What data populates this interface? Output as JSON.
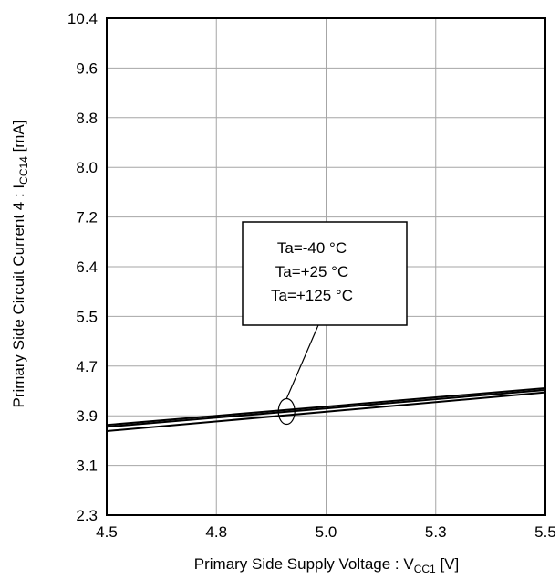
{
  "chart_data": {
    "type": "line",
    "xlabel": {
      "main": "Primary Side Supply Voltage : V",
      "sub": "CC1",
      "suffix": " [V]"
    },
    "ylabel": {
      "main": "Primary Side Circuit Current 4 : I",
      "sub": "CC14",
      "suffix": " [mA]"
    },
    "xlim": [
      4.5,
      5.5
    ],
    "ylim": [
      2.3,
      10.4
    ],
    "x_ticks": [
      "4.5",
      "4.8",
      "5.0",
      "5.3",
      "5.5"
    ],
    "y_ticks": [
      "10.4",
      "9.6",
      "8.8",
      "8.0",
      "7.2",
      "6.4",
      "5.5",
      "4.7",
      "3.9",
      "3.1",
      "2.3"
    ],
    "grid": true,
    "series": [
      {
        "name": "Ta=-40 °C",
        "x": [
          4.5,
          5.5
        ],
        "y": [
          3.77,
          4.37
        ]
      },
      {
        "name": "Ta=+25 °C",
        "x": [
          4.5,
          5.5
        ],
        "y": [
          3.74,
          4.34
        ]
      },
      {
        "name": "Ta=+125 °C",
        "x": [
          4.5,
          5.5
        ],
        "y": [
          3.67,
          4.3
        ]
      }
    ],
    "legend": {
      "placement": "center",
      "entries": [
        "Ta=-40 °C",
        "Ta=+25 °C",
        "Ta=+125 °C"
      ],
      "pointer_target": {
        "x": 4.91,
        "y": 3.99
      }
    },
    "line_color": "#000000",
    "grid_color": "#a6a6a6"
  }
}
